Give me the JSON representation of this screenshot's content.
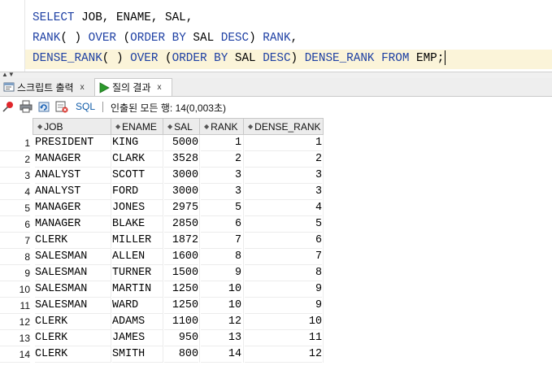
{
  "editor": {
    "lines": [
      [
        {
          "t": "SELECT",
          "k": true
        },
        {
          "t": " JOB, ENAME, SAL,",
          "k": false
        }
      ],
      [
        {
          "t": "RANK",
          "k": true
        },
        {
          "t": "( ) ",
          "k": false
        },
        {
          "t": "OVER",
          "k": true
        },
        {
          "t": " (",
          "k": false
        },
        {
          "t": "ORDER",
          "k": true
        },
        {
          "t": " ",
          "k": false
        },
        {
          "t": "BY",
          "k": true
        },
        {
          "t": " SAL ",
          "k": false
        },
        {
          "t": "DESC",
          "k": true
        },
        {
          "t": ") ",
          "k": false
        },
        {
          "t": "RANK",
          "k": true
        },
        {
          "t": ",",
          "k": false
        }
      ],
      [
        {
          "t": "DENSE_RANK",
          "k": true
        },
        {
          "t": "( ) ",
          "k": false
        },
        {
          "t": "OVER",
          "k": true
        },
        {
          "t": " (",
          "k": false
        },
        {
          "t": "ORDER",
          "k": true
        },
        {
          "t": " ",
          "k": false
        },
        {
          "t": "BY",
          "k": true
        },
        {
          "t": " SAL ",
          "k": false
        },
        {
          "t": "DESC",
          "k": true
        },
        {
          "t": ") ",
          "k": false
        },
        {
          "t": "DENSE_RANK",
          "k": true
        },
        {
          "t": " ",
          "k": false
        },
        {
          "t": "FROM",
          "k": true
        },
        {
          "t": " EMP;",
          "k": false
        }
      ]
    ],
    "keyword_color": "#1d3fa3",
    "current_line_color": "#fbf4d9"
  },
  "tabs": [
    {
      "label": "스크립트 출력",
      "close": "x",
      "icon": "script-output-icon"
    },
    {
      "label": "질의 결과",
      "close": "x",
      "icon": "query-result-icon"
    }
  ],
  "toolbar": {
    "sql_label": "SQL",
    "status": "인출된 모든 행: 14(0,003초)"
  },
  "grid": {
    "columns": [
      "JOB",
      "ENAME",
      "SAL",
      "RANK",
      "DENSE_RANK"
    ],
    "rows": [
      [
        "1",
        "PRESIDENT",
        "KING",
        "5000",
        "1",
        "1"
      ],
      [
        "2",
        "MANAGER",
        "CLARK",
        "3528",
        "2",
        "2"
      ],
      [
        "3",
        "ANALYST",
        "SCOTT",
        "3000",
        "3",
        "3"
      ],
      [
        "4",
        "ANALYST",
        "FORD",
        "3000",
        "3",
        "3"
      ],
      [
        "5",
        "MANAGER",
        "JONES",
        "2975",
        "5",
        "4"
      ],
      [
        "6",
        "MANAGER",
        "BLAKE",
        "2850",
        "6",
        "5"
      ],
      [
        "7",
        "CLERK",
        "MILLER",
        "1872",
        "7",
        "6"
      ],
      [
        "8",
        "SALESMAN",
        "ALLEN",
        "1600",
        "8",
        "7"
      ],
      [
        "9",
        "SALESMAN",
        "TURNER",
        "1500",
        "9",
        "8"
      ],
      [
        "10",
        "SALESMAN",
        "MARTIN",
        "1250",
        "10",
        "9"
      ],
      [
        "11",
        "SALESMAN",
        "WARD",
        "1250",
        "10",
        "9"
      ],
      [
        "12",
        "CLERK",
        "ADAMS",
        "1100",
        "12",
        "10"
      ],
      [
        "13",
        "CLERK",
        "JAMES",
        "950",
        "13",
        "11"
      ],
      [
        "14",
        "CLERK",
        "SMITH",
        "800",
        "14",
        "12"
      ]
    ]
  }
}
